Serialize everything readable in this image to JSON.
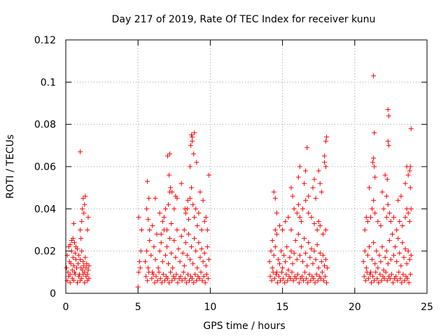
{
  "chart_data": {
    "type": "scatter",
    "title": "Day 217 of 2019, Rate Of TEC Index for receiver kunu",
    "xlabel": "GPS time / hours",
    "ylabel": "ROTI / TECUs",
    "xlim": [
      0,
      25
    ],
    "ylim": [
      0,
      0.12
    ],
    "x_ticks": [
      0,
      5,
      10,
      15,
      20,
      25
    ],
    "y_ticks": [
      0,
      0.02,
      0.04,
      0.06,
      0.08,
      0.1,
      0.12
    ],
    "x_tick_labels": [
      "0",
      "5",
      "10",
      "15",
      "20",
      "25"
    ],
    "y_tick_labels": [
      "0",
      "0.02",
      "0.04",
      "0.06",
      "0.08",
      "0.1",
      "0.12"
    ],
    "grid": true,
    "marker": "+",
    "marker_color": "#ff0000",
    "series": [
      {
        "x": [
          0.05,
          0.1,
          0.15,
          0.2,
          0.25,
          0.3,
          0.35,
          0.4,
          0.45,
          0.5,
          0.55,
          0.6,
          0.65,
          0.7,
          0.75,
          0.8,
          0.85,
          0.9,
          0.95,
          1.0,
          1.05,
          1.1,
          1.15,
          1.2,
          1.25,
          1.3,
          1.35,
          1.4,
          1.45,
          1.5,
          1.55,
          1.6,
          0.1,
          0.2,
          0.3,
          0.45,
          0.55,
          0.65,
          0.8,
          0.9,
          1.0,
          1.1,
          1.2,
          1.3,
          1.4,
          1.5,
          1.6,
          0.5,
          0.55,
          1.0,
          1.05,
          1.1,
          1.15,
          1.2,
          1.25,
          1.3,
          1.35,
          1.5,
          1.55,
          0.3,
          0.4,
          0.6,
          0.7,
          1.0,
          5.05,
          5.1,
          5.15,
          5.2,
          5.25,
          5.0,
          5.05,
          5.5,
          5.6,
          5.7,
          5.8,
          5.9,
          6.0,
          6.1,
          6.2,
          6.3,
          6.4,
          6.5,
          6.6,
          6.7,
          6.8,
          6.9,
          7.0,
          7.1,
          7.2,
          7.3,
          7.4,
          7.5,
          7.6,
          7.7,
          7.8,
          7.9,
          8.0,
          8.1,
          8.2,
          8.3,
          8.4,
          8.5,
          8.6,
          8.7,
          8.8,
          8.9,
          9.0,
          9.1,
          9.2,
          9.3,
          9.4,
          9.5,
          9.6,
          9.7,
          9.8,
          9.9,
          5.55,
          5.65,
          5.75,
          5.95,
          6.05,
          6.15,
          6.25,
          6.35,
          6.45,
          6.55,
          6.65,
          6.75,
          6.85,
          6.95,
          7.05,
          7.15,
          7.25,
          7.35,
          7.45,
          7.55,
          7.65,
          7.75,
          7.85,
          7.95,
          8.05,
          8.15,
          8.25,
          8.35,
          8.45,
          8.55,
          8.65,
          8.75,
          8.85,
          8.95,
          9.05,
          9.15,
          9.25,
          9.35,
          9.45,
          9.55,
          9.65,
          9.75,
          9.85,
          5.6,
          5.7,
          5.8,
          6.0,
          6.5,
          6.6,
          6.7,
          6.8,
          7.0,
          7.1,
          7.2,
          7.3,
          7.5,
          7.7,
          8.2,
          8.3,
          8.4,
          8.5,
          8.6,
          8.7,
          8.8,
          8.9,
          9.0,
          9.1,
          9.2,
          9.4,
          9.6,
          9.7,
          9.8,
          5.65,
          5.75,
          6.2,
          6.9,
          7.05,
          7.15,
          7.25,
          7.35,
          7.6,
          8.0,
          8.25,
          8.45,
          8.6,
          8.65,
          8.75,
          8.85,
          9.05,
          9.3,
          9.5,
          9.9,
          7.2,
          8.7,
          8.75,
          8.9,
          14.1,
          14.2,
          14.3,
          14.4,
          14.5,
          14.6,
          14.7,
          14.8,
          14.9,
          15.0,
          15.1,
          15.2,
          15.3,
          15.4,
          15.5,
          15.6,
          15.7,
          15.8,
          15.9,
          16.0,
          16.1,
          16.2,
          16.3,
          16.4,
          16.5,
          16.6,
          16.7,
          16.8,
          16.9,
          17.0,
          17.1,
          17.2,
          17.3,
          17.4,
          17.5,
          17.6,
          17.7,
          17.8,
          17.9,
          18.0,
          18.1,
          14.15,
          14.25,
          14.35,
          14.45,
          14.55,
          14.65,
          14.75,
          14.85,
          14.95,
          15.05,
          15.15,
          15.25,
          15.35,
          15.45,
          15.55,
          15.65,
          15.75,
          15.85,
          15.95,
          16.05,
          16.15,
          16.25,
          16.35,
          16.45,
          16.55,
          16.65,
          16.75,
          16.85,
          16.95,
          17.05,
          17.15,
          17.25,
          17.35,
          17.45,
          17.55,
          17.65,
          17.75,
          17.85,
          17.95,
          18.05,
          14.3,
          14.5,
          14.6,
          14.8,
          15.0,
          15.2,
          15.4,
          15.6,
          15.8,
          16.0,
          16.1,
          16.2,
          16.3,
          16.4,
          16.6,
          16.8,
          17.0,
          17.2,
          17.4,
          17.5,
          17.6,
          17.8,
          18.0,
          14.4,
          14.5,
          14.6,
          15.6,
          15.7,
          16.1,
          16.2,
          16.5,
          16.6,
          16.7,
          17.1,
          17.2,
          17.3,
          17.5,
          17.6,
          17.7,
          17.9,
          18.0,
          18.05,
          16.8,
          17.9,
          18.0,
          20.6,
          20.7,
          20.8,
          20.9,
          21.0,
          21.1,
          21.2,
          21.3,
          21.4,
          21.5,
          21.6,
          21.7,
          21.8,
          21.9,
          22.0,
          22.1,
          22.2,
          22.3,
          22.4,
          22.5,
          22.6,
          22.7,
          22.8,
          22.9,
          23.0,
          23.1,
          23.2,
          23.3,
          23.4,
          23.5,
          23.6,
          23.7,
          23.8,
          23.9,
          20.65,
          20.75,
          20.85,
          20.95,
          21.05,
          21.15,
          21.25,
          21.35,
          21.45,
          21.55,
          21.65,
          21.75,
          21.85,
          21.95,
          22.05,
          22.15,
          22.25,
          22.35,
          22.45,
          22.55,
          22.65,
          22.75,
          22.85,
          22.95,
          23.05,
          23.15,
          23.25,
          23.35,
          23.45,
          23.55,
          23.65,
          23.75,
          23.85,
          20.7,
          20.9,
          21.1,
          21.2,
          21.3,
          21.4,
          21.6,
          21.8,
          22.0,
          22.2,
          22.3,
          22.4,
          22.5,
          22.7,
          22.9,
          23.1,
          23.3,
          23.5,
          23.6,
          23.7,
          23.8,
          20.8,
          21.0,
          21.25,
          21.3,
          21.35,
          21.4,
          21.9,
          22.1,
          22.2,
          22.25,
          22.3,
          22.35,
          23.0,
          23.2,
          23.5,
          23.6,
          23.7,
          23.8,
          23.85,
          23.9,
          21.35,
          22.3,
          22.35,
          23.85,
          21.3,
          23.9
        ],
        "y": [
          0.012,
          0.018,
          0.01,
          0.022,
          0.015,
          0.009,
          0.014,
          0.02,
          0.011,
          0.017,
          0.013,
          0.01,
          0.019,
          0.016,
          0.012,
          0.021,
          0.014,
          0.018,
          0.009,
          0.016,
          0.012,
          0.02,
          0.011,
          0.015,
          0.013,
          0.01,
          0.017,
          0.012,
          0.014,
          0.009,
          0.011,
          0.013,
          0.006,
          0.008,
          0.005,
          0.007,
          0.006,
          0.009,
          0.005,
          0.008,
          0.006,
          0.007,
          0.009,
          0.005,
          0.008,
          0.006,
          0.007,
          0.026,
          0.033,
          0.03,
          0.026,
          0.034,
          0.04,
          0.045,
          0.038,
          0.042,
          0.046,
          0.03,
          0.036,
          0.023,
          0.025,
          0.024,
          0.022,
          0.067,
          0.01,
          0.015,
          0.012,
          0.02,
          0.03,
          0.003,
          0.036,
          0.015,
          0.02,
          0.012,
          0.025,
          0.018,
          0.01,
          0.022,
          0.016,
          0.028,
          0.012,
          0.02,
          0.024,
          0.015,
          0.03,
          0.018,
          0.022,
          0.014,
          0.026,
          0.019,
          0.012,
          0.025,
          0.017,
          0.03,
          0.021,
          0.015,
          0.027,
          0.019,
          0.013,
          0.024,
          0.018,
          0.028,
          0.016,
          0.022,
          0.014,
          0.026,
          0.02,
          0.012,
          0.024,
          0.017,
          0.021,
          0.015,
          0.019,
          0.013,
          0.022,
          0.016,
          0.008,
          0.006,
          0.01,
          0.007,
          0.009,
          0.005,
          0.008,
          0.006,
          0.01,
          0.007,
          0.005,
          0.009,
          0.006,
          0.008,
          0.007,
          0.005,
          0.01,
          0.006,
          0.008,
          0.007,
          0.009,
          0.005,
          0.007,
          0.008,
          0.006,
          0.01,
          0.007,
          0.005,
          0.009,
          0.006,
          0.008,
          0.007,
          0.005,
          0.009,
          0.006,
          0.008,
          0.007,
          0.01,
          0.006,
          0.008,
          0.005,
          0.009,
          0.007,
          0.04,
          0.035,
          0.03,
          0.032,
          0.038,
          0.028,
          0.034,
          0.036,
          0.03,
          0.042,
          0.048,
          0.033,
          0.04,
          0.045,
          0.03,
          0.038,
          0.04,
          0.035,
          0.045,
          0.05,
          0.042,
          0.036,
          0.04,
          0.032,
          0.038,
          0.03,
          0.034,
          0.036,
          0.03,
          0.053,
          0.045,
          0.045,
          0.04,
          0.065,
          0.056,
          0.05,
          0.048,
          0.046,
          0.052,
          0.04,
          0.044,
          0.06,
          0.07,
          0.074,
          0.066,
          0.062,
          0.048,
          0.044,
          0.056,
          0.066,
          0.075,
          0.072,
          0.076,
          0.015,
          0.02,
          0.012,
          0.018,
          0.022,
          0.01,
          0.016,
          0.014,
          0.02,
          0.012,
          0.018,
          0.015,
          0.022,
          0.011,
          0.017,
          0.02,
          0.014,
          0.019,
          0.025,
          0.016,
          0.028,
          0.018,
          0.022,
          0.015,
          0.026,
          0.019,
          0.013,
          0.024,
          0.017,
          0.021,
          0.014,
          0.02,
          0.016,
          0.023,
          0.012,
          0.019,
          0.015,
          0.018,
          0.013,
          0.016,
          0.012,
          0.008,
          0.006,
          0.01,
          0.007,
          0.009,
          0.005,
          0.008,
          0.006,
          0.01,
          0.007,
          0.005,
          0.009,
          0.006,
          0.008,
          0.007,
          0.01,
          0.006,
          0.008,
          0.007,
          0.009,
          0.005,
          0.007,
          0.008,
          0.006,
          0.01,
          0.007,
          0.005,
          0.009,
          0.006,
          0.008,
          0.007,
          0.005,
          0.009,
          0.006,
          0.008,
          0.007,
          0.01,
          0.006,
          0.008,
          0.005,
          0.025,
          0.03,
          0.028,
          0.032,
          0.03,
          0.034,
          0.036,
          0.03,
          0.04,
          0.038,
          0.042,
          0.036,
          0.034,
          0.04,
          0.044,
          0.038,
          0.036,
          0.033,
          0.03,
          0.034,
          0.032,
          0.028,
          0.03,
          0.048,
          0.045,
          0.038,
          0.05,
          0.046,
          0.055,
          0.06,
          0.052,
          0.058,
          0.069,
          0.05,
          0.054,
          0.045,
          0.058,
          0.052,
          0.048,
          0.062,
          0.072,
          0.074,
          0.046,
          0.065,
          0.06,
          0.015,
          0.02,
          0.012,
          0.018,
          0.022,
          0.01,
          0.016,
          0.024,
          0.014,
          0.02,
          0.012,
          0.018,
          0.015,
          0.022,
          0.011,
          0.017,
          0.02,
          0.014,
          0.025,
          0.016,
          0.028,
          0.018,
          0.022,
          0.015,
          0.026,
          0.019,
          0.013,
          0.024,
          0.017,
          0.021,
          0.014,
          0.02,
          0.016,
          0.018,
          0.008,
          0.006,
          0.01,
          0.007,
          0.009,
          0.005,
          0.008,
          0.006,
          0.01,
          0.007,
          0.005,
          0.009,
          0.006,
          0.008,
          0.007,
          0.01,
          0.006,
          0.008,
          0.007,
          0.009,
          0.005,
          0.007,
          0.008,
          0.006,
          0.01,
          0.007,
          0.005,
          0.009,
          0.006,
          0.008,
          0.007,
          0.005,
          0.009,
          0.03,
          0.034,
          0.036,
          0.04,
          0.044,
          0.038,
          0.034,
          0.032,
          0.04,
          0.036,
          0.042,
          0.038,
          0.034,
          0.036,
          0.03,
          0.034,
          0.032,
          0.036,
          0.04,
          0.038,
          0.034,
          0.036,
          0.05,
          0.062,
          0.064,
          0.06,
          0.055,
          0.048,
          0.056,
          0.046,
          0.054,
          0.072,
          0.07,
          0.044,
          0.046,
          0.052,
          0.06,
          0.056,
          0.058,
          0.05,
          0.04,
          0.076,
          0.087,
          0.084,
          0.06,
          0.103,
          0.078
        ]
      }
    ]
  }
}
